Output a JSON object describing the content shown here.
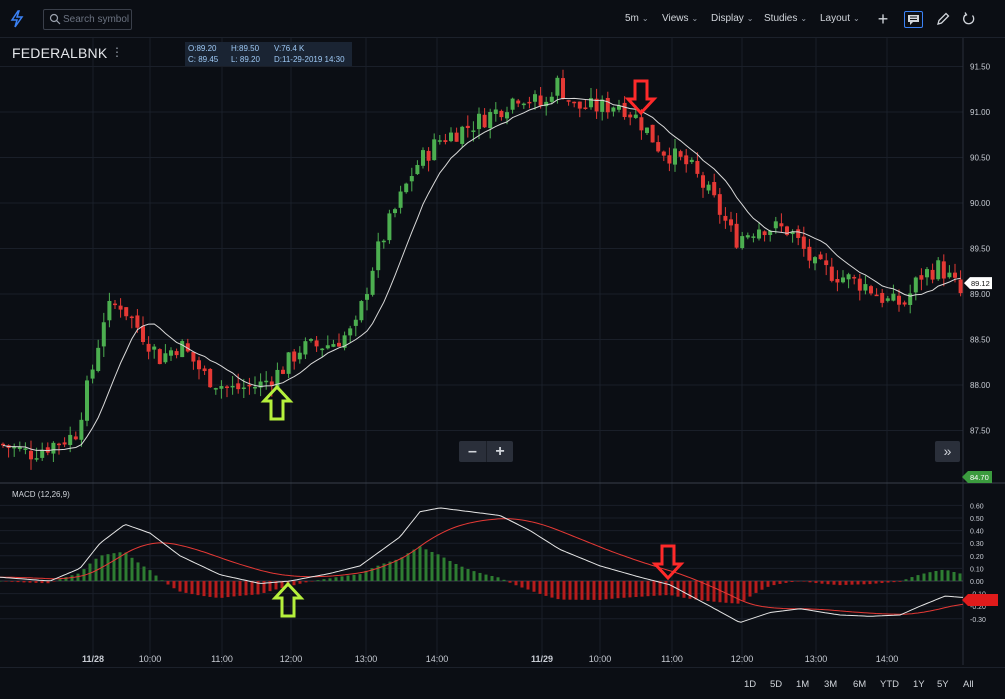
{
  "toolbar": {
    "search_placeholder": "Search symbol",
    "interval": "5m",
    "views": "Views",
    "display": "Display",
    "studies": "Studies",
    "layout": "Layout"
  },
  "symbol": "FEDERALBNK",
  "ohlc": {
    "open": "O:89.20",
    "high": "H:89.50",
    "volume": "V:76.4 K",
    "close": "C: 89.45",
    "low": "L: 89.20",
    "date": "D:11-29-2019 14:30"
  },
  "price_axis": {
    "ticks": [
      "91.50",
      "91.00",
      "90.50",
      "90.00",
      "89.50",
      "89.00",
      "88.50",
      "88.00",
      "87.50"
    ],
    "last_price_label": "89.12",
    "bottom_label": "84.70"
  },
  "macd": {
    "label": "MACD (12,26,9)",
    "ticks": [
      "0.60",
      "0.50",
      "0.40",
      "0.30",
      "0.20",
      "0.10",
      "0.00",
      "-0.10",
      "-0.20",
      "-0.30"
    ]
  },
  "time_axis": {
    "labels": [
      "11/28",
      "10:00",
      "11:00",
      "12:00",
      "13:00",
      "14:00",
      "11/29",
      "10:00",
      "11:00",
      "12:00",
      "13:00",
      "14:00"
    ]
  },
  "ranges": [
    "1D",
    "5D",
    "1M",
    "3M",
    "6M",
    "YTD",
    "1Y",
    "5Y",
    "All"
  ],
  "colors": {
    "up": "#4caf50",
    "down": "#e53935",
    "sma": "#d9d9d9",
    "macd_line": "#e6e6e6",
    "signal_line": "#e53935",
    "annotation_up": "#b5f03c",
    "annotation_down": "#ff2a2a"
  }
}
